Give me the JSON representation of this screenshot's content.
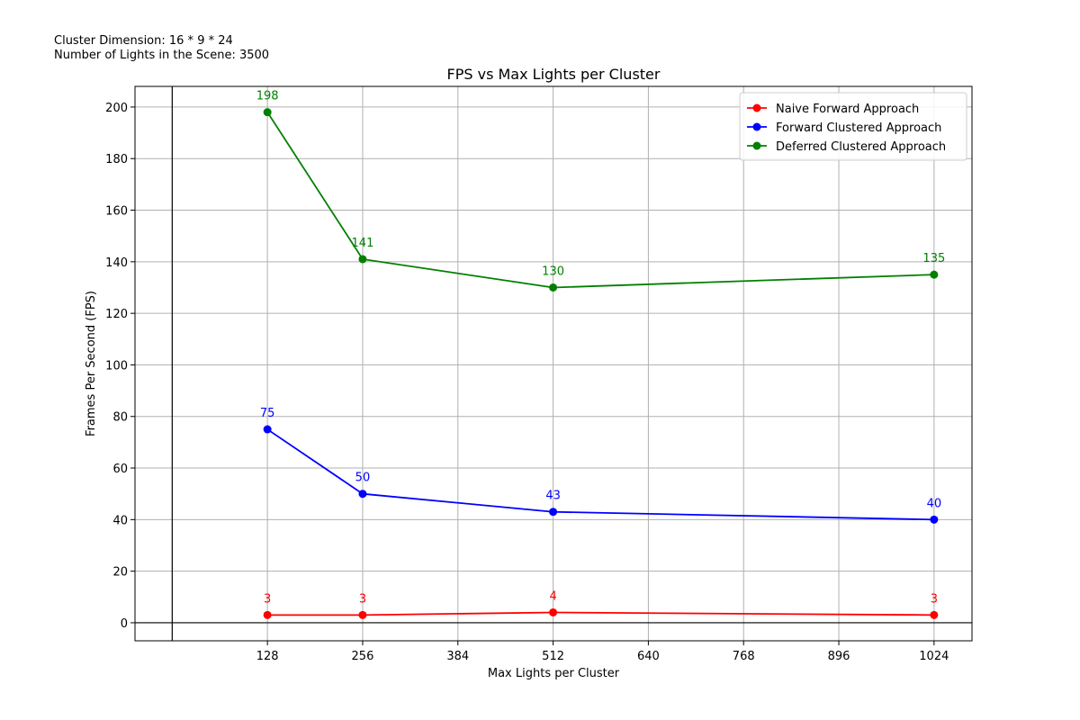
{
  "annotations": {
    "cluster_dimension": "Cluster Dimension: 16 * 9 * 24",
    "lights_in_scene": "Number of Lights in the Scene: 3500"
  },
  "chart_data": {
    "type": "line",
    "title": "FPS vs Max Lights per Cluster",
    "xlabel": "Max Lights per Cluster",
    "ylabel": "Frames Per Second (FPS)",
    "x": [
      128,
      256,
      512,
      1024
    ],
    "xlim": [
      -50,
      1075
    ],
    "ylim": [
      -7,
      208
    ],
    "xticks": [
      128,
      256,
      384,
      512,
      640,
      768,
      896,
      1024
    ],
    "yticks": [
      0,
      20,
      40,
      60,
      80,
      100,
      120,
      140,
      160,
      180,
      200
    ],
    "grid": true,
    "zero_lines": true,
    "legend_position": "top-right",
    "series": [
      {
        "name": "Naive Forward Approach",
        "color": "#ff0000",
        "values": [
          3,
          3,
          4,
          3
        ]
      },
      {
        "name": "Forward Clustered Approach",
        "color": "#0000ff",
        "values": [
          75,
          50,
          43,
          40
        ]
      },
      {
        "name": "Deferred Clustered Approach",
        "color": "#008000",
        "values": [
          198,
          141,
          130,
          135
        ]
      }
    ]
  }
}
